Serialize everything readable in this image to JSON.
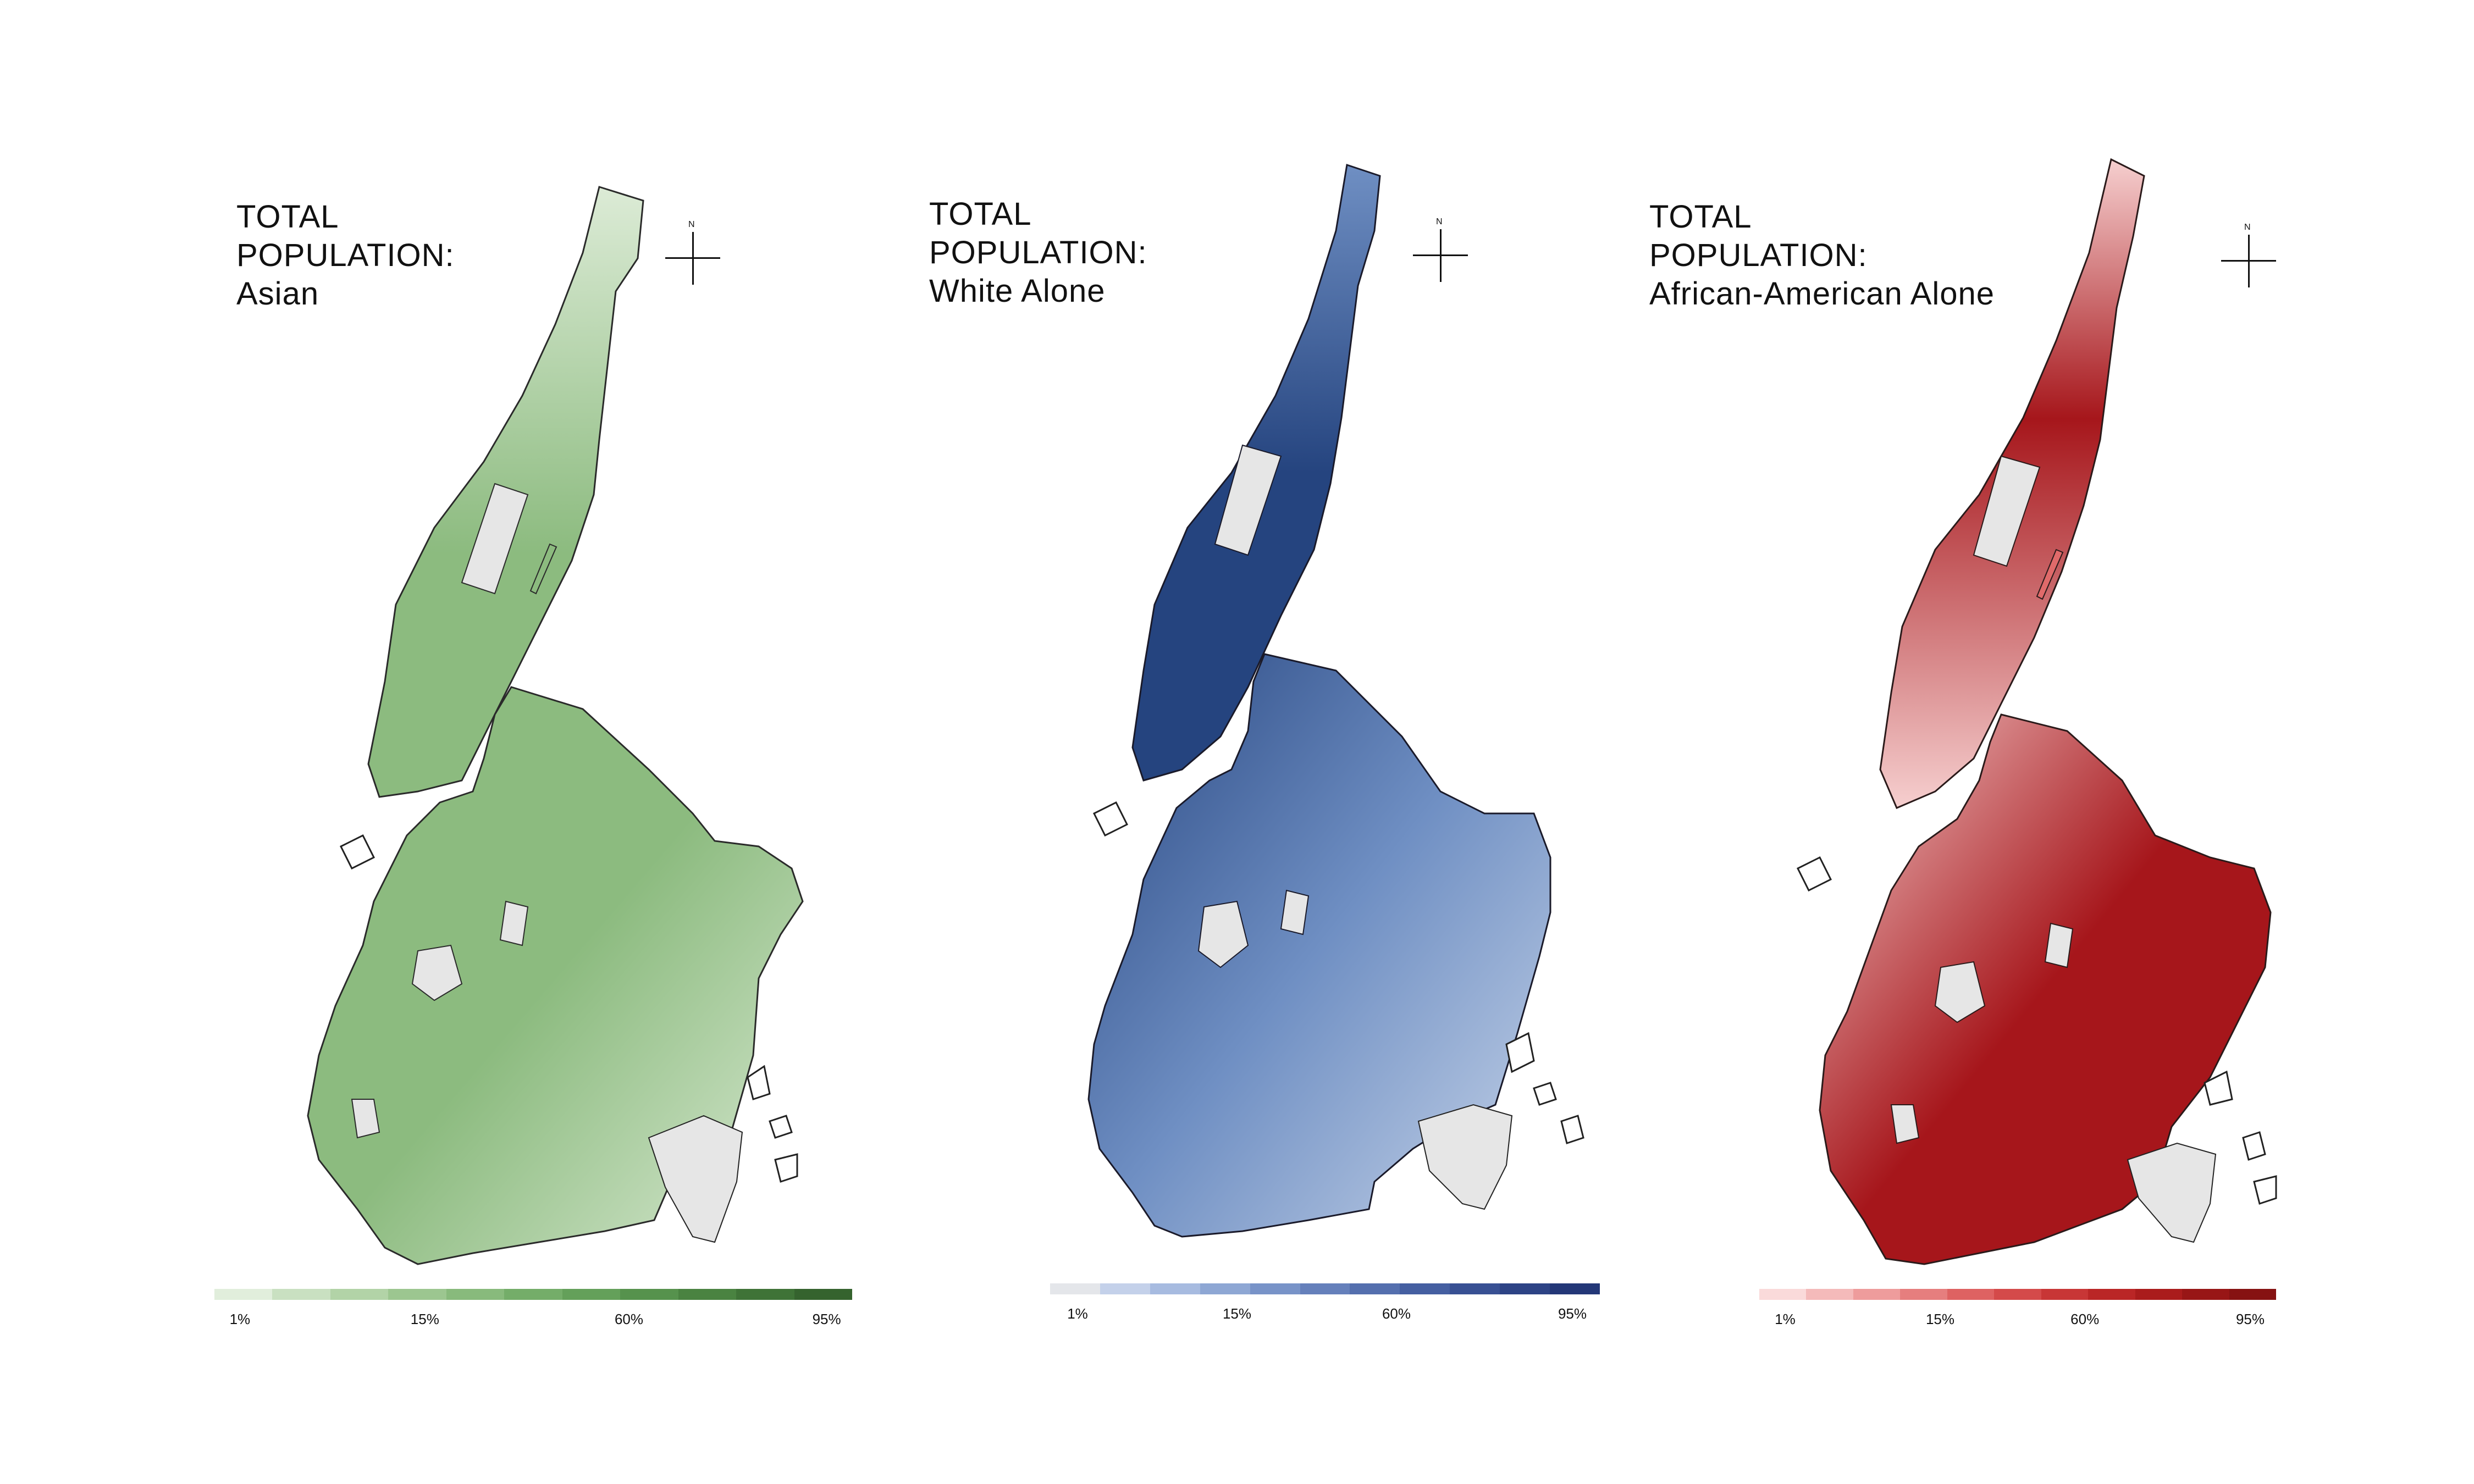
{
  "panels": [
    {
      "title_line1": "TOTAL",
      "title_line2": "POPULATION:",
      "title_line3": "Asian",
      "compass_label": "N",
      "colors": {
        "light": "#dcebd6",
        "mid": "#8cbb7f",
        "dark": "#3f6e37",
        "edge": "#2a2a2a"
      },
      "legend": {
        "scale": [
          "#e1eedc",
          "#c9e0c1",
          "#b2d3a7",
          "#9cc690",
          "#88ba7c",
          "#74ad69",
          "#64a05a",
          "#56924d",
          "#4a8341",
          "#3f7337",
          "#35632e"
        ],
        "ticks": [
          "1%",
          "15%",
          "60%",
          "95%"
        ]
      }
    },
    {
      "title_line1": "TOTAL",
      "title_line2": "POPULATION:",
      "title_line3": "White Alone",
      "compass_label": "N",
      "colors": {
        "light": "#c9d6ea",
        "mid": "#6f8fc3",
        "dark": "#25447f",
        "edge": "#1a1a2a"
      },
      "legend": {
        "scale": [
          "#e4e6ea",
          "#c4d1ea",
          "#a7bbe0",
          "#8ea7d4",
          "#7893c8",
          "#6580bb",
          "#546fae",
          "#455fa1",
          "#385093",
          "#2d4385",
          "#233777"
        ],
        "ticks": [
          "1%",
          "15%",
          "60%",
          "95%"
        ]
      }
    },
    {
      "title_line1": "TOTAL",
      "title_line2": "POPULATION:",
      "title_line3": "African-American Alone",
      "compass_label": "N",
      "colors": {
        "light": "#f6cfcf",
        "mid": "#e06a6a",
        "dark": "#a6161b",
        "edge": "#2a1a1a"
      },
      "legend": {
        "scale": [
          "#fadada",
          "#f4baba",
          "#ee9c9c",
          "#e67e7e",
          "#de6262",
          "#d44a4a",
          "#c83636",
          "#ba2626",
          "#aa1c1c",
          "#981616",
          "#861212"
        ],
        "ticks": [
          "1%",
          "15%",
          "60%",
          "95%"
        ]
      }
    }
  ]
}
